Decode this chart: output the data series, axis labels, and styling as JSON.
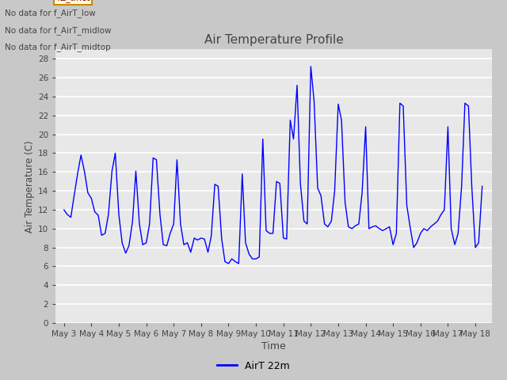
{
  "title": "Air Temperature Profile",
  "xlabel": "Time",
  "ylabel": "Air Temperature (C)",
  "legend_label": "AirT 22m",
  "no_data_texts": [
    "No data for f_AirT_low",
    "No data for f_AirT_midlow",
    "No data for f_AirT_midtop"
  ],
  "ylim": [
    0,
    29
  ],
  "yticks": [
    0,
    2,
    4,
    6,
    8,
    10,
    12,
    14,
    16,
    18,
    20,
    22,
    24,
    26,
    28
  ],
  "line_color": "blue",
  "fig_bg_color": "#c8c8c8",
  "plot_bg_color": "#e8e8e8",
  "x_values": [
    0.0,
    0.12,
    0.25,
    0.37,
    0.5,
    0.62,
    0.75,
    0.87,
    1.0,
    1.12,
    1.25,
    1.37,
    1.5,
    1.62,
    1.75,
    1.87,
    2.0,
    2.12,
    2.25,
    2.37,
    2.5,
    2.62,
    2.75,
    2.87,
    3.0,
    3.12,
    3.25,
    3.37,
    3.5,
    3.62,
    3.75,
    3.87,
    4.0,
    4.12,
    4.25,
    4.37,
    4.5,
    4.62,
    4.75,
    4.87,
    5.0,
    5.12,
    5.25,
    5.37,
    5.5,
    5.62,
    5.75,
    5.87,
    6.0,
    6.12,
    6.25,
    6.37,
    6.5,
    6.62,
    6.75,
    6.87,
    7.0,
    7.12,
    7.25,
    7.37,
    7.5,
    7.62,
    7.75,
    7.87,
    8.0,
    8.12,
    8.25,
    8.37,
    8.5,
    8.62,
    8.75,
    8.87,
    9.0,
    9.12,
    9.25,
    9.37,
    9.5,
    9.62,
    9.75,
    9.87,
    10.0,
    10.12,
    10.25,
    10.37,
    10.5,
    10.62,
    10.75,
    10.87,
    11.0,
    11.12,
    11.25,
    11.37,
    11.5,
    11.62,
    11.75,
    11.87,
    12.0,
    12.12,
    12.25,
    12.37,
    12.5,
    12.62,
    12.75,
    12.87,
    13.0,
    13.12,
    13.25,
    13.37,
    13.5,
    13.62,
    13.75,
    13.87,
    14.0,
    14.12,
    14.25,
    14.37,
    14.5,
    14.62,
    14.75,
    14.87,
    15.0,
    15.12,
    15.25
  ],
  "y_values": [
    12.0,
    11.5,
    11.2,
    13.5,
    15.9,
    17.8,
    16.0,
    13.8,
    13.2,
    11.8,
    11.4,
    9.3,
    9.5,
    11.5,
    16.1,
    18.0,
    11.5,
    8.5,
    7.4,
    8.2,
    10.8,
    16.1,
    10.5,
    8.3,
    8.5,
    10.5,
    17.5,
    17.3,
    11.5,
    8.3,
    8.2,
    9.5,
    10.5,
    17.3,
    10.5,
    8.3,
    8.5,
    7.5,
    9.0,
    8.8,
    9.0,
    8.9,
    7.5,
    9.2,
    14.7,
    14.5,
    8.9,
    6.5,
    6.3,
    6.8,
    6.5,
    6.3,
    15.8,
    8.5,
    7.3,
    6.8,
    6.8,
    7.0,
    19.5,
    9.8,
    9.5,
    9.5,
    15.0,
    14.8,
    9.0,
    8.9,
    21.5,
    19.5,
    25.2,
    14.8,
    10.8,
    10.5,
    27.2,
    23.5,
    14.3,
    13.5,
    10.5,
    10.2,
    10.8,
    14.0,
    23.2,
    21.5,
    12.8,
    10.2,
    10.0,
    10.3,
    10.5,
    13.8,
    20.8,
    10.0,
    10.2,
    10.3,
    10.0,
    9.8,
    10.0,
    10.2,
    8.3,
    9.5,
    23.3,
    23.0,
    12.5,
    10.2,
    8.0,
    8.5,
    9.5,
    10.0,
    9.8,
    10.2,
    10.5,
    10.8,
    11.5,
    12.0,
    20.8,
    10.0,
    8.3,
    9.5,
    14.5,
    23.3,
    23.0,
    14.5,
    8.0,
    8.5,
    14.5
  ],
  "x_tick_labels": [
    "May 3",
    "May 4",
    "May 5",
    "May 6",
    "May 7",
    "May 8",
    "May 9",
    "May 10",
    "May 11",
    "May 12",
    "May 13",
    "May 14",
    "May 15",
    "May 16",
    "May 17",
    "May 18"
  ],
  "x_tick_positions": [
    0,
    1,
    2,
    3,
    4,
    5,
    6,
    7,
    8,
    9,
    10,
    11,
    12,
    13,
    14,
    15
  ]
}
